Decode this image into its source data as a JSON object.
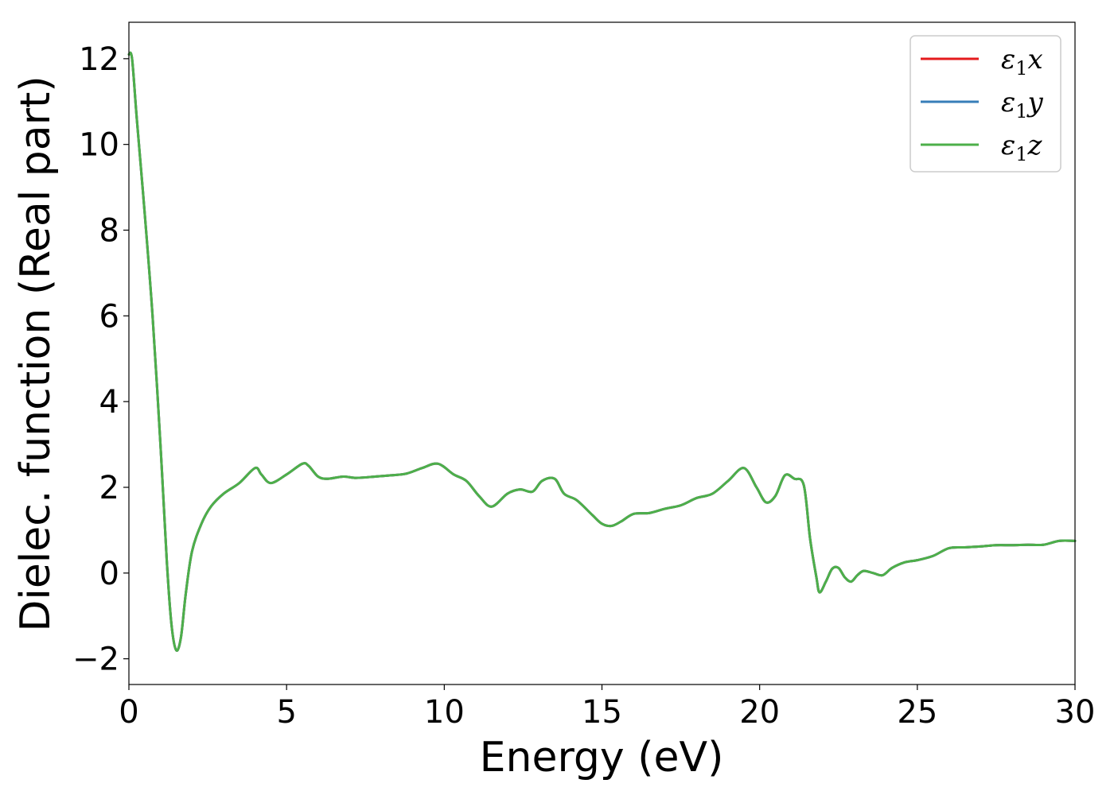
{
  "chart_data": {
    "type": "line",
    "title": "",
    "xlabel": "Energy (eV)",
    "ylabel": "Dielec. function (Real part)",
    "xlim": [
      0,
      30
    ],
    "ylim": [
      -2.6,
      12.85
    ],
    "xticks": [
      0,
      5,
      10,
      15,
      20,
      25,
      30
    ],
    "yticks": [
      -2,
      0,
      2,
      4,
      6,
      8,
      10,
      12
    ],
    "xtick_labels": [
      "0",
      "5",
      "10",
      "15",
      "20",
      "25",
      "30"
    ],
    "ytick_labels": [
      "−2",
      "0",
      "2",
      "4",
      "6",
      "8",
      "10",
      "12"
    ],
    "grid": false,
    "legend_position": "top-right",
    "series": [
      {
        "name": "ε1x",
        "symbol": "ε",
        "subscript": "1",
        "suffix": "x",
        "color": "#e41a1c",
        "x": [
          0,
          0.1,
          0.25,
          0.5,
          0.75,
          1.0,
          1.2,
          1.35,
          1.5,
          1.65,
          1.8,
          2.0,
          2.3,
          2.6,
          3.0,
          3.5,
          4.0,
          4.2,
          4.5,
          5.0,
          5.5,
          5.7,
          6.0,
          6.3,
          6.8,
          7.2,
          7.8,
          8.3,
          8.8,
          9.3,
          9.8,
          10.3,
          10.7,
          11.1,
          11.5,
          12.0,
          12.4,
          12.8,
          13.1,
          13.5,
          13.8,
          14.2,
          14.7,
          15.0,
          15.3,
          15.6,
          16.0,
          16.5,
          17.0,
          17.5,
          18.0,
          18.5,
          19.0,
          19.5,
          19.9,
          20.2,
          20.5,
          20.8,
          21.1,
          21.4,
          21.6,
          21.8,
          21.9,
          22.1,
          22.3,
          22.5,
          22.7,
          22.9,
          23.1,
          23.3,
          23.6,
          23.9,
          24.2,
          24.6,
          25.0,
          25.5,
          26.0,
          26.5,
          27.0,
          27.5,
          28.0,
          28.5,
          29.0,
          29.5,
          30.0
        ],
        "y": [
          12.1,
          12.0,
          10.6,
          8.4,
          6.0,
          3.0,
          0.3,
          -1.2,
          -1.8,
          -1.5,
          -0.5,
          0.5,
          1.15,
          1.55,
          1.85,
          2.1,
          2.45,
          2.3,
          2.1,
          2.3,
          2.55,
          2.5,
          2.25,
          2.2,
          2.25,
          2.22,
          2.25,
          2.28,
          2.32,
          2.45,
          2.55,
          2.3,
          2.15,
          1.8,
          1.55,
          1.85,
          1.95,
          1.9,
          2.15,
          2.2,
          1.85,
          1.7,
          1.35,
          1.15,
          1.1,
          1.2,
          1.38,
          1.4,
          1.5,
          1.58,
          1.75,
          1.85,
          2.15,
          2.45,
          2.0,
          1.65,
          1.8,
          2.28,
          2.2,
          2.05,
          0.8,
          -0.1,
          -0.45,
          -0.2,
          0.1,
          0.12,
          -0.1,
          -0.2,
          -0.05,
          0.05,
          0.0,
          -0.05,
          0.12,
          0.25,
          0.3,
          0.4,
          0.58,
          0.6,
          0.62,
          0.65,
          0.65,
          0.66,
          0.66,
          0.75,
          0.75
        ]
      },
      {
        "name": "ε1y",
        "symbol": "ε",
        "subscript": "1",
        "suffix": "y",
        "color": "#377eb8",
        "x": [
          0,
          0.1,
          0.25,
          0.5,
          0.75,
          1.0,
          1.2,
          1.35,
          1.5,
          1.65,
          1.8,
          2.0,
          2.3,
          2.6,
          3.0,
          3.5,
          4.0,
          4.2,
          4.5,
          5.0,
          5.5,
          5.7,
          6.0,
          6.3,
          6.8,
          7.2,
          7.8,
          8.3,
          8.8,
          9.3,
          9.8,
          10.3,
          10.7,
          11.1,
          11.5,
          12.0,
          12.4,
          12.8,
          13.1,
          13.5,
          13.8,
          14.2,
          14.7,
          15.0,
          15.3,
          15.6,
          16.0,
          16.5,
          17.0,
          17.5,
          18.0,
          18.5,
          19.0,
          19.5,
          19.9,
          20.2,
          20.5,
          20.8,
          21.1,
          21.4,
          21.6,
          21.8,
          21.9,
          22.1,
          22.3,
          22.5,
          22.7,
          22.9,
          23.1,
          23.3,
          23.6,
          23.9,
          24.2,
          24.6,
          25.0,
          25.5,
          26.0,
          26.5,
          27.0,
          27.5,
          28.0,
          28.5,
          29.0,
          29.5,
          30.0
        ],
        "y": [
          12.1,
          12.0,
          10.6,
          8.4,
          6.0,
          3.0,
          0.3,
          -1.2,
          -1.8,
          -1.5,
          -0.5,
          0.5,
          1.15,
          1.55,
          1.85,
          2.1,
          2.45,
          2.3,
          2.1,
          2.3,
          2.55,
          2.5,
          2.25,
          2.2,
          2.25,
          2.22,
          2.25,
          2.28,
          2.32,
          2.45,
          2.55,
          2.3,
          2.15,
          1.8,
          1.55,
          1.85,
          1.95,
          1.9,
          2.15,
          2.2,
          1.85,
          1.7,
          1.35,
          1.15,
          1.1,
          1.2,
          1.38,
          1.4,
          1.5,
          1.58,
          1.75,
          1.85,
          2.15,
          2.45,
          2.0,
          1.65,
          1.8,
          2.28,
          2.2,
          2.05,
          0.8,
          -0.1,
          -0.45,
          -0.2,
          0.1,
          0.12,
          -0.1,
          -0.2,
          -0.05,
          0.05,
          0.0,
          -0.05,
          0.12,
          0.25,
          0.3,
          0.4,
          0.58,
          0.6,
          0.62,
          0.65,
          0.65,
          0.66,
          0.66,
          0.75,
          0.75
        ]
      },
      {
        "name": "ε1z",
        "symbol": "ε",
        "subscript": "1",
        "suffix": "z",
        "color": "#4daf4a",
        "x": [
          0,
          0.1,
          0.25,
          0.5,
          0.75,
          1.0,
          1.2,
          1.35,
          1.5,
          1.65,
          1.8,
          2.0,
          2.3,
          2.6,
          3.0,
          3.5,
          4.0,
          4.2,
          4.5,
          5.0,
          5.5,
          5.7,
          6.0,
          6.3,
          6.8,
          7.2,
          7.8,
          8.3,
          8.8,
          9.3,
          9.8,
          10.3,
          10.7,
          11.1,
          11.5,
          12.0,
          12.4,
          12.8,
          13.1,
          13.5,
          13.8,
          14.2,
          14.7,
          15.0,
          15.3,
          15.6,
          16.0,
          16.5,
          17.0,
          17.5,
          18.0,
          18.5,
          19.0,
          19.5,
          19.9,
          20.2,
          20.5,
          20.8,
          21.1,
          21.4,
          21.6,
          21.8,
          21.9,
          22.1,
          22.3,
          22.5,
          22.7,
          22.9,
          23.1,
          23.3,
          23.6,
          23.9,
          24.2,
          24.6,
          25.0,
          25.5,
          26.0,
          26.5,
          27.0,
          27.5,
          28.0,
          28.5,
          29.0,
          29.5,
          30.0
        ],
        "y": [
          12.1,
          12.0,
          10.6,
          8.4,
          6.0,
          3.0,
          0.3,
          -1.2,
          -1.8,
          -1.5,
          -0.5,
          0.5,
          1.15,
          1.55,
          1.85,
          2.1,
          2.45,
          2.3,
          2.1,
          2.3,
          2.55,
          2.5,
          2.25,
          2.2,
          2.25,
          2.22,
          2.25,
          2.28,
          2.32,
          2.45,
          2.55,
          2.3,
          2.15,
          1.8,
          1.55,
          1.85,
          1.95,
          1.9,
          2.15,
          2.2,
          1.85,
          1.7,
          1.35,
          1.15,
          1.1,
          1.2,
          1.38,
          1.4,
          1.5,
          1.58,
          1.75,
          1.85,
          2.15,
          2.45,
          2.0,
          1.65,
          1.8,
          2.28,
          2.2,
          2.05,
          0.8,
          -0.1,
          -0.45,
          -0.2,
          0.1,
          0.12,
          -0.1,
          -0.2,
          -0.05,
          0.05,
          0.0,
          -0.05,
          0.12,
          0.25,
          0.3,
          0.4,
          0.58,
          0.6,
          0.62,
          0.65,
          0.65,
          0.66,
          0.66,
          0.75,
          0.75
        ]
      }
    ]
  }
}
